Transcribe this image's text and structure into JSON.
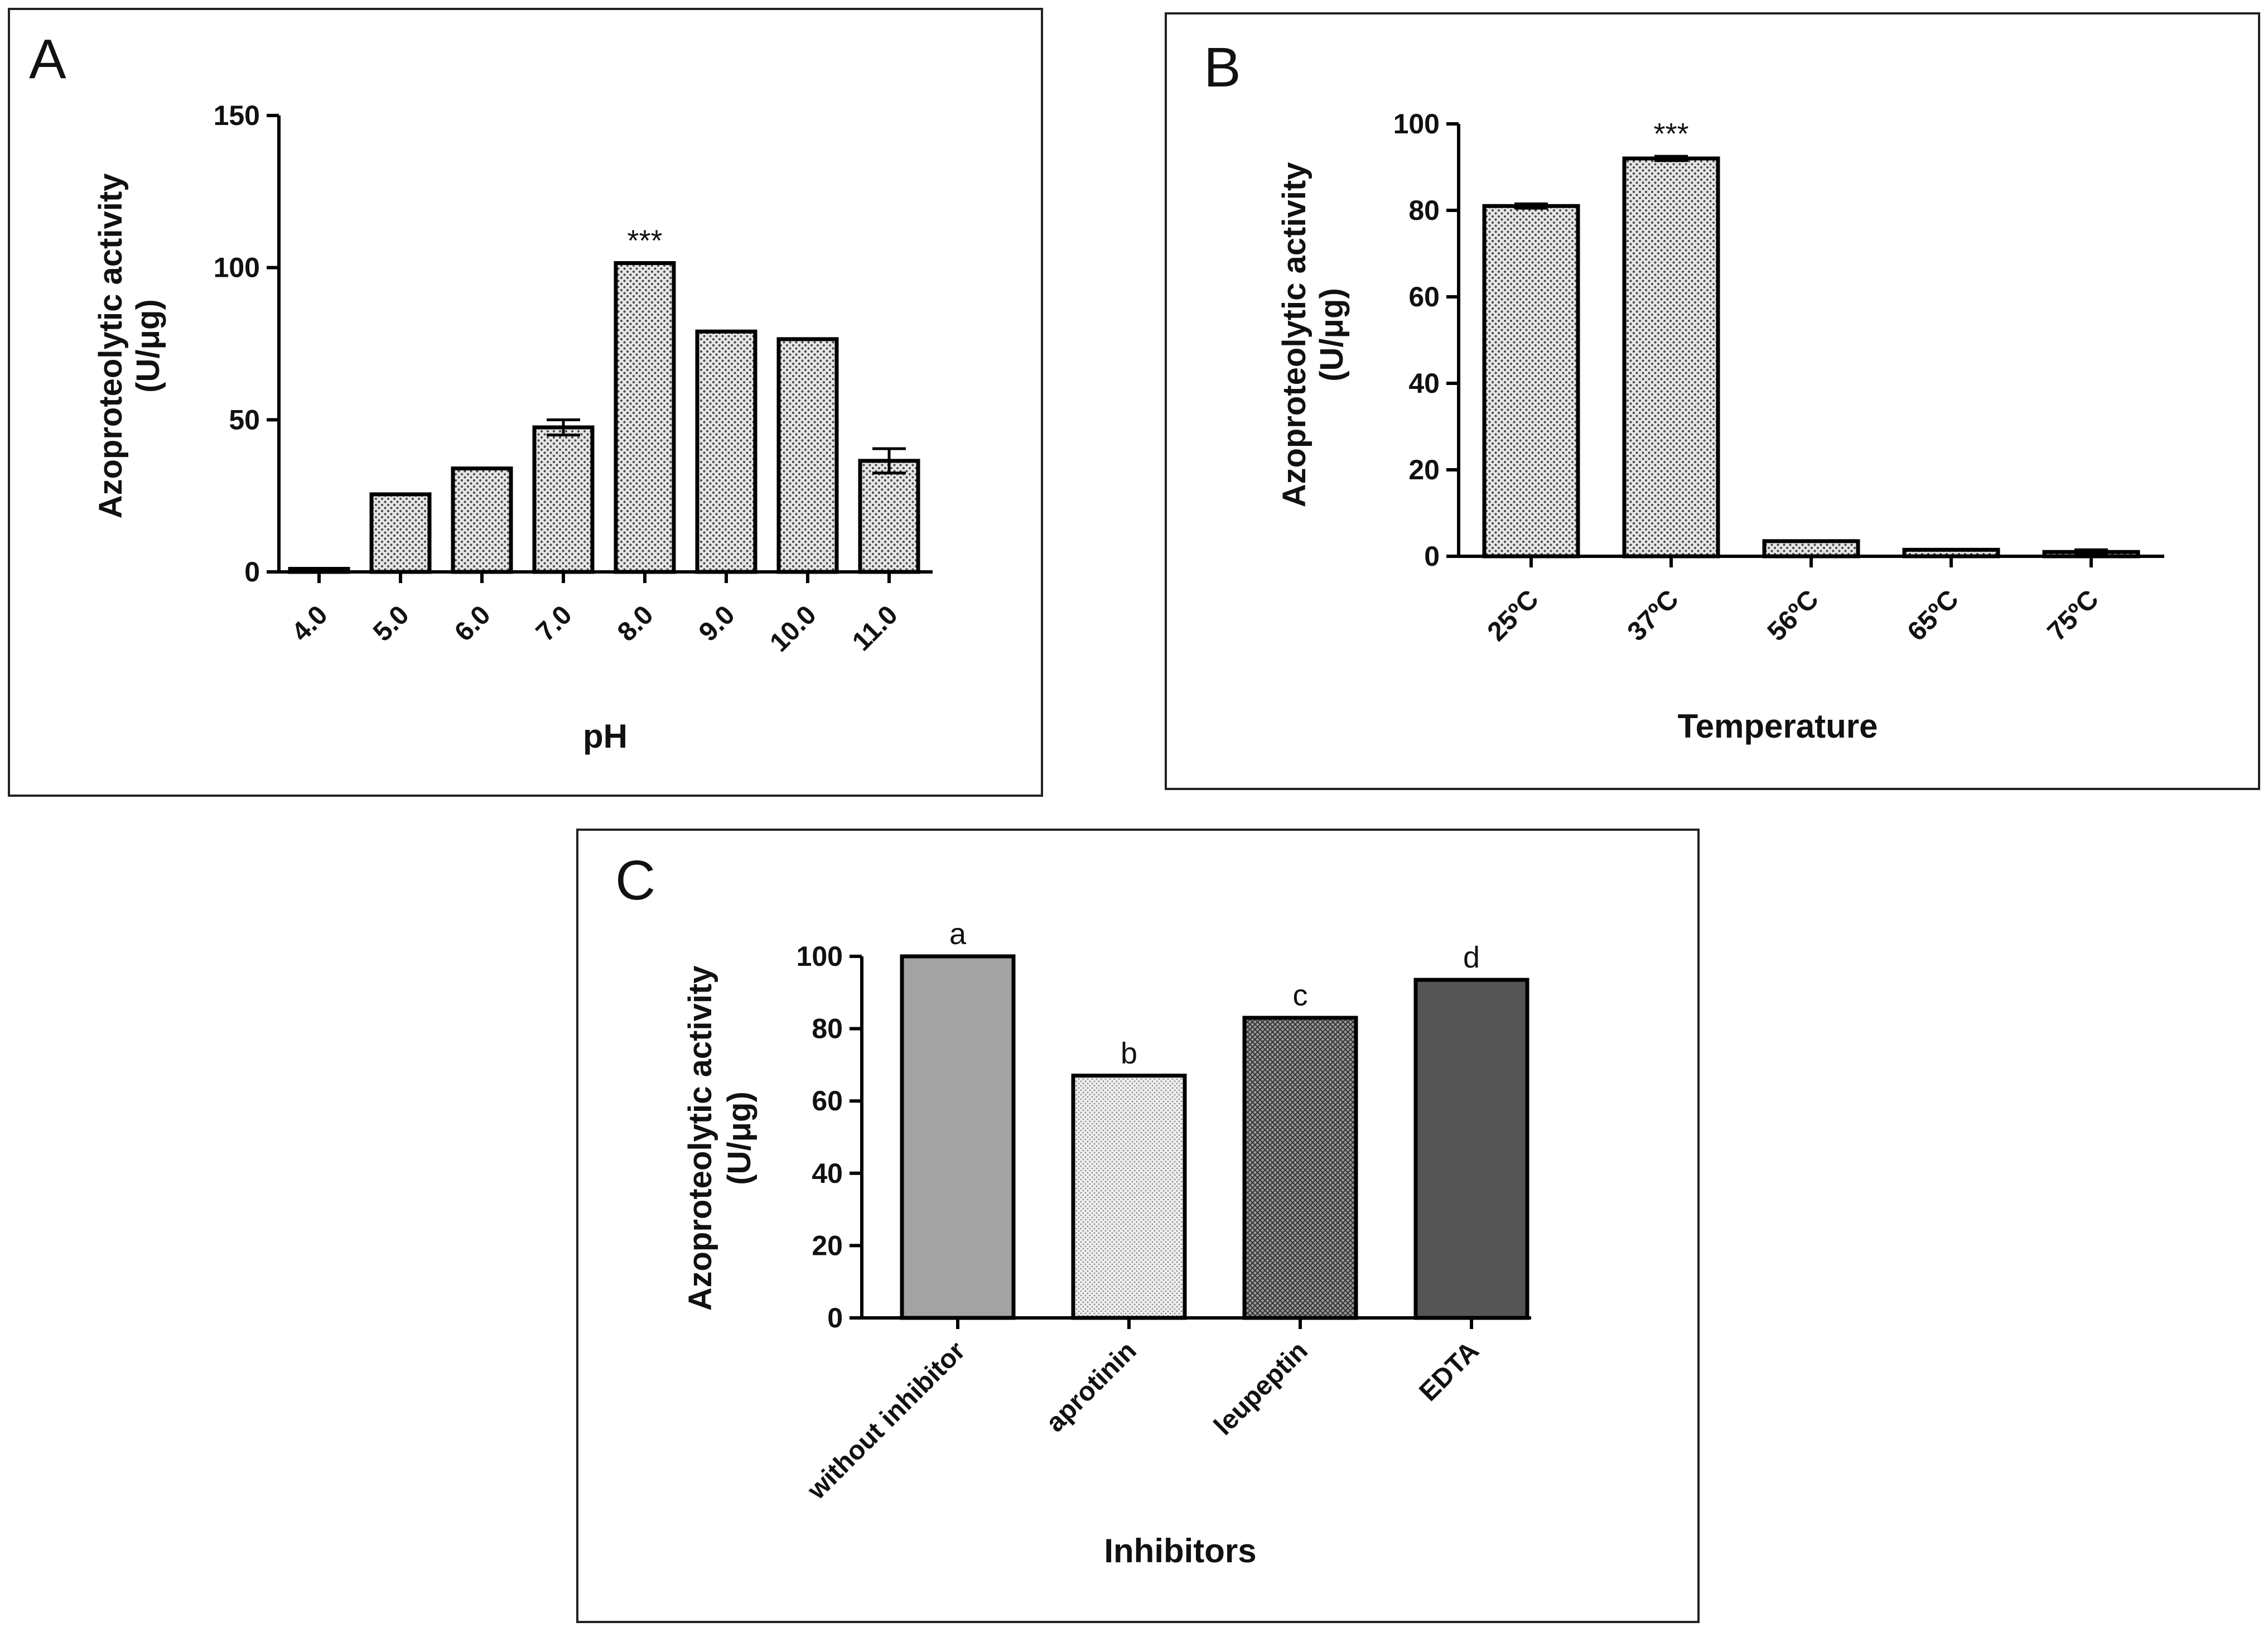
{
  "chart_data": [
    {
      "type": "bar",
      "panel": "A",
      "title": "",
      "xlabel": "pH",
      "ylabel_line1": "Azoproteolytic activity",
      "ylabel_line2": "(U/μg)",
      "ylim": [
        0,
        150
      ],
      "yticks": [
        0,
        50,
        100,
        150
      ],
      "ytick_labels": [
        "0",
        "50",
        "100",
        "150"
      ],
      "categories": [
        "4.0",
        "5.0",
        "6.0",
        "7.0",
        "8.0",
        "9.0",
        "10.0",
        "11.0"
      ],
      "values": [
        1,
        25.5,
        34,
        47.5,
        101.5,
        79,
        76.5,
        36.5
      ],
      "errors": [
        0,
        0,
        0,
        2.5,
        0,
        0,
        0,
        4
      ],
      "annotations": [
        "",
        "",
        "",
        "",
        "***",
        "",
        "",
        ""
      ],
      "fill": "dotted",
      "colors": {
        "bar_fill": "#d9d9d9",
        "dot": "#555555"
      }
    },
    {
      "type": "bar",
      "panel": "B",
      "title": "",
      "xlabel": "Temperature",
      "ylabel_line1": "Azoproteolytic activity",
      "ylabel_line2": "(U/μg)",
      "ylim": [
        0,
        100
      ],
      "yticks": [
        0,
        20,
        40,
        60,
        80,
        100
      ],
      "ytick_labels": [
        "0",
        "20",
        "40",
        "60",
        "80",
        "100"
      ],
      "categories": [
        "25ºC",
        "37ºC",
        "56ºC",
        "65ºC",
        "75ºC"
      ],
      "values": [
        81,
        92,
        3.5,
        1.5,
        1
      ],
      "errors": [
        0.5,
        0.5,
        0,
        0,
        0.5
      ],
      "annotations": [
        "",
        "***",
        "",
        "",
        ""
      ],
      "fill": "dotted",
      "colors": {
        "bar_fill": "#d9d9d9",
        "dot": "#555555"
      }
    },
    {
      "type": "bar",
      "panel": "C",
      "title": "",
      "xlabel": "Inhibitors",
      "ylabel_line1": "Azoproteolytic activity",
      "ylabel_line2": "(U/μg)",
      "ylim": [
        0,
        100
      ],
      "yticks": [
        0,
        20,
        40,
        60,
        80,
        100
      ],
      "ytick_labels": [
        "0",
        "20",
        "40",
        "60",
        "80",
        "100"
      ],
      "categories": [
        "without inhibitor",
        "aprotinin",
        "leupeptin",
        "EDTA"
      ],
      "values": [
        100,
        67,
        83,
        93.5
      ],
      "errors": [
        0,
        0,
        0,
        0
      ],
      "annotations": [
        "a",
        "b",
        "c",
        "d"
      ],
      "bar_colors": [
        "#a3a3a3",
        "#e8e8e8",
        "#8c8c8c",
        "#555555"
      ],
      "bar_patterns": [
        "solid",
        "fine-dots",
        "crosshatch",
        "solid"
      ]
    }
  ]
}
